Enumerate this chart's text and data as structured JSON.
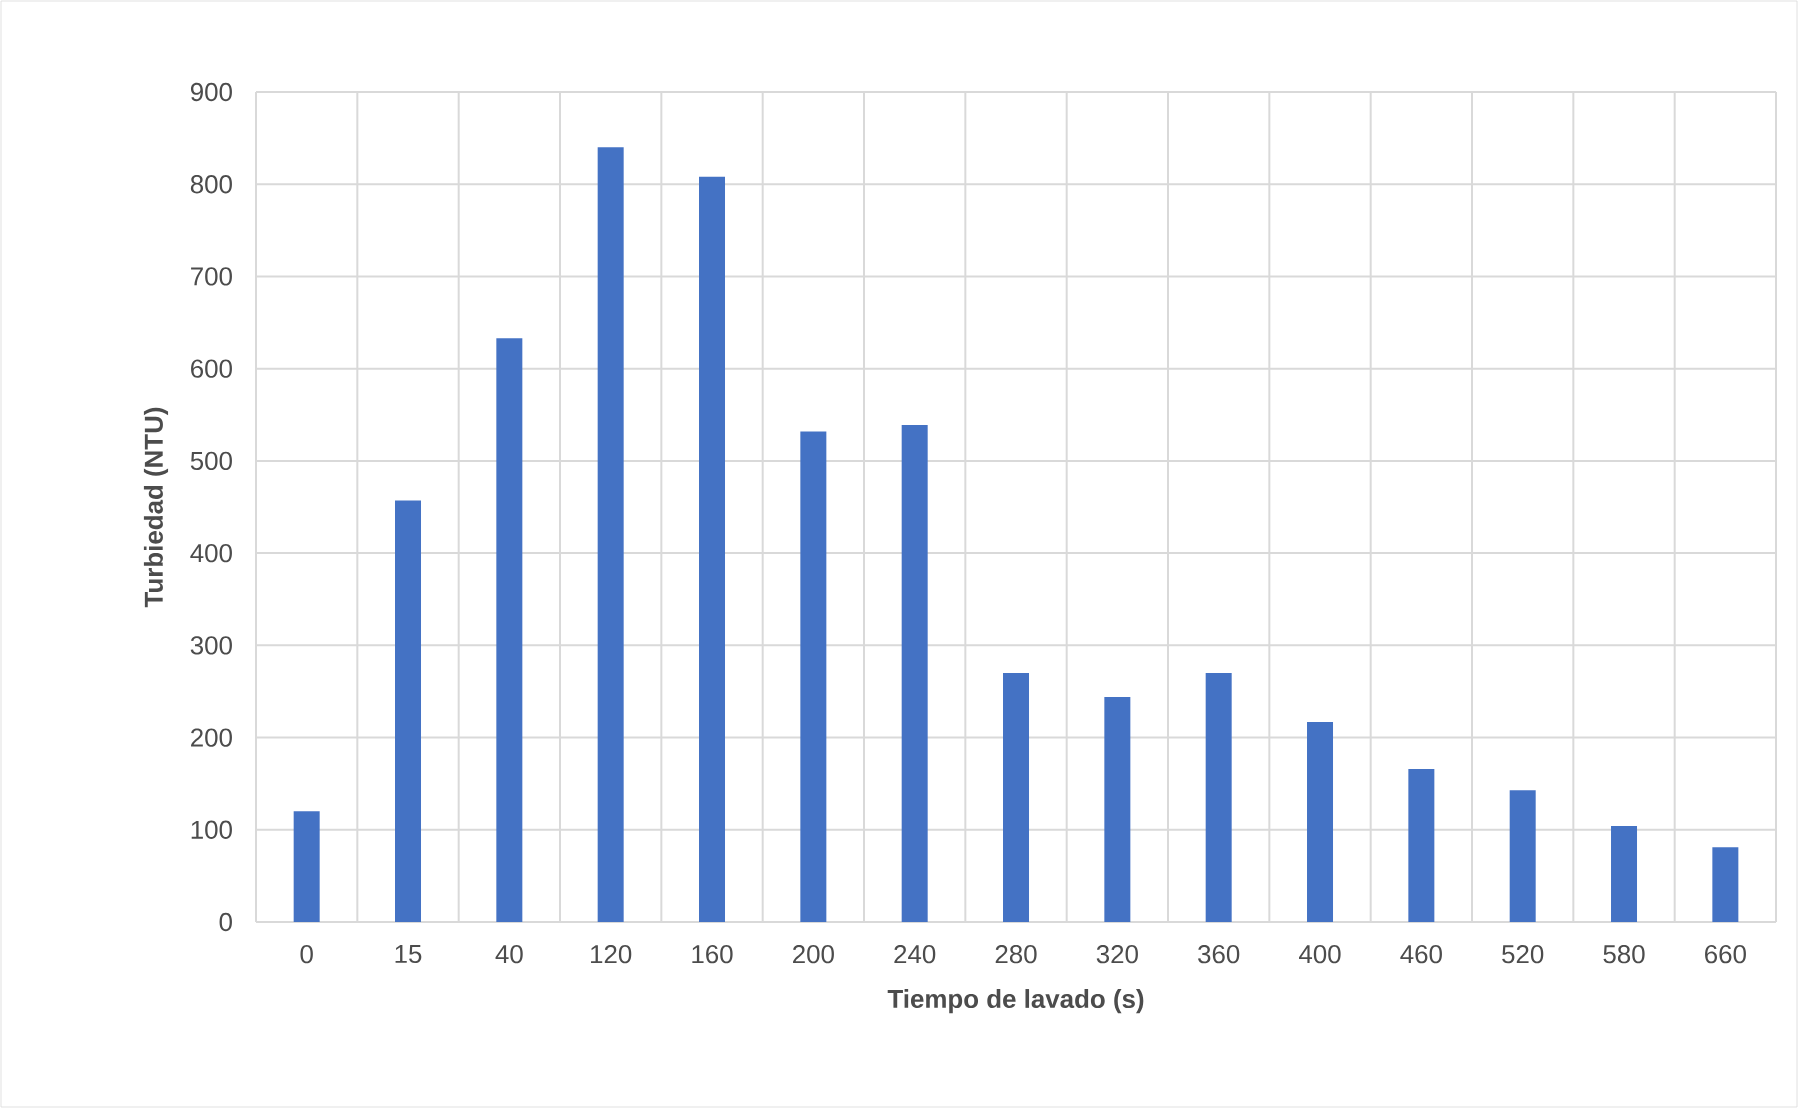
{
  "chart_data": {
    "type": "bar",
    "xlabel": "Tiempo de lavado (s)",
    "ylabel": "Turbiedad (NTU)",
    "categories": [
      "0",
      "15",
      "40",
      "120",
      "160",
      "200",
      "240",
      "280",
      "320",
      "360",
      "400",
      "460",
      "520",
      "580",
      "660"
    ],
    "values": [
      120,
      457,
      633,
      840,
      808,
      532,
      539,
      270,
      244,
      270,
      217,
      166,
      143,
      104,
      81
    ],
    "color": "#4472c4",
    "ylim": [
      0,
      900
    ],
    "yticks": [
      0,
      100,
      200,
      300,
      400,
      500,
      600,
      700,
      800,
      900
    ],
    "grid": true
  }
}
